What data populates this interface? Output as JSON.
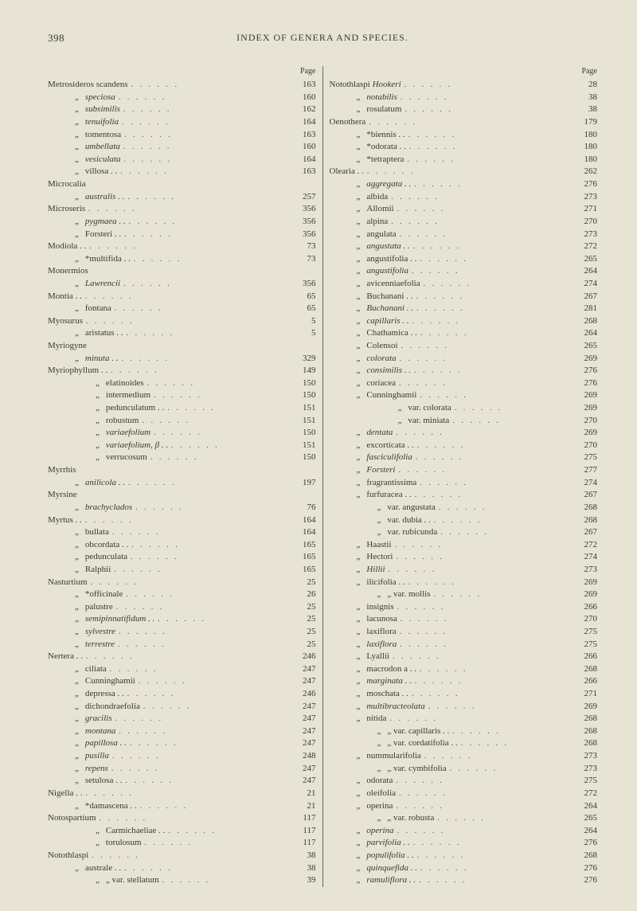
{
  "page_number": "398",
  "header_title": "INDEX OF GENERA AND SPECIES.",
  "page_label": "Page",
  "dots": ". .      . .      . .",
  "colors": {
    "background": "#e7e4d5",
    "text": "#3a3a32"
  },
  "left": [
    {
      "t": "Metrosideros scandens",
      "i": 0,
      "p": "163"
    },
    {
      "t": "speciosa",
      "i": 1,
      "d": 1,
      "it": 1,
      "p": "160"
    },
    {
      "t": "subsimilis",
      "i": 1,
      "d": 1,
      "it": 1,
      "p": "162"
    },
    {
      "t": "tenuifolia",
      "i": 1,
      "d": 1,
      "it": 1,
      "p": "164"
    },
    {
      "t": "tomentosa",
      "i": 1,
      "d": 1,
      "p": "163"
    },
    {
      "t": "umbellata",
      "i": 1,
      "d": 1,
      "it": 1,
      "p": "160"
    },
    {
      "t": "vesiculata",
      "i": 1,
      "d": 1,
      "it": 1,
      "p": "164"
    },
    {
      "t": "villosa . .",
      "i": 1,
      "d": 1,
      "p": "163"
    },
    {
      "t": "Microcalia",
      "i": 0,
      "p": ""
    },
    {
      "t": "australis . .",
      "i": 1,
      "d": 1,
      "it": 1,
      "p": "257"
    },
    {
      "t": "Microseris",
      "i": 0,
      "p": "356"
    },
    {
      "t": "pygmaea . .",
      "i": 1,
      "d": 1,
      "it": 1,
      "p": "356"
    },
    {
      "t": "Forsteri . .",
      "i": 1,
      "d": 1,
      "p": "356"
    },
    {
      "t": "Modiola . .",
      "i": 0,
      "p": "73"
    },
    {
      "t": "*multifida . .",
      "i": 1,
      "d": 1,
      "p": "73"
    },
    {
      "t": "Monermios",
      "i": 0,
      "p": ""
    },
    {
      "t": "Lawrencii",
      "i": 1,
      "d": 1,
      "it": 1,
      "p": "356"
    },
    {
      "t": "Montia . .",
      "i": 0,
      "p": "65"
    },
    {
      "t": "fontana",
      "i": 1,
      "d": 1,
      "p": "65"
    },
    {
      "t": "Myosurus",
      "i": 0,
      "p": "5"
    },
    {
      "t": "aristatus . .",
      "i": 1,
      "d": 1,
      "p": "5"
    },
    {
      "t": "Myriogyne",
      "i": 0,
      "p": ""
    },
    {
      "t": "minuta . .",
      "i": 1,
      "d": 1,
      "it": 1,
      "p": "329"
    },
    {
      "t": "Myriophyllum . .",
      "i": 0,
      "p": "149"
    },
    {
      "t": "elatinoides",
      "i": 2,
      "d": 1,
      "p": "150"
    },
    {
      "t": "intermedium",
      "i": 2,
      "d": 1,
      "p": "150"
    },
    {
      "t": "pedunculatum . .",
      "i": 2,
      "d": 1,
      "p": "151"
    },
    {
      "t": "robustum",
      "i": 2,
      "d": 1,
      "p": "151"
    },
    {
      "t": "variaefolium",
      "i": 2,
      "d": 1,
      "it": 1,
      "p": "150"
    },
    {
      "t": "variaefolium, β . .",
      "i": 2,
      "d": 1,
      "it": 1,
      "p": "151"
    },
    {
      "t": "verrucosum",
      "i": 2,
      "d": 1,
      "p": "150"
    },
    {
      "t": "Myrrhis",
      "i": 0,
      "p": ""
    },
    {
      "t": "anilicola  . .",
      "i": 1,
      "d": 1,
      "it": 1,
      "p": "197"
    },
    {
      "t": "Myrsine",
      "i": 0,
      "p": ""
    },
    {
      "t": "brachyclados",
      "i": 1,
      "d": 1,
      "it": 1,
      "p": "76"
    },
    {
      "t": "Myrtus . .",
      "i": 0,
      "p": "164"
    },
    {
      "t": "bullata",
      "i": 1,
      "d": 1,
      "p": "164"
    },
    {
      "t": "obcordata . .",
      "i": 1,
      "d": 1,
      "p": "165"
    },
    {
      "t": "pedunculata",
      "i": 1,
      "d": 1,
      "p": "165"
    },
    {
      "t": "Ralphii",
      "i": 1,
      "d": 1,
      "p": "165"
    },
    {
      "t": " ",
      "i": 0,
      "p": ""
    },
    {
      "t": "Nasturtium",
      "i": 0,
      "p": "25"
    },
    {
      "t": "*officinale",
      "i": 1,
      "d": 1,
      "p": "26"
    },
    {
      "t": "palustre",
      "i": 1,
      "d": 1,
      "p": "25"
    },
    {
      "t": "semipinnatifidum . .",
      "i": 1,
      "d": 1,
      "it": 1,
      "p": "25"
    },
    {
      "t": "sylvestre",
      "i": 1,
      "d": 1,
      "it": 1,
      "p": "25"
    },
    {
      "t": "terrestre",
      "i": 1,
      "d": 1,
      "it": 1,
      "p": "25"
    },
    {
      "t": "Nertera . .",
      "i": 0,
      "p": "246"
    },
    {
      "t": "ciliata",
      "i": 1,
      "d": 1,
      "p": "247"
    },
    {
      "t": "Cunninghamii",
      "i": 1,
      "d": 1,
      "p": "247"
    },
    {
      "t": "depressa . .",
      "i": 1,
      "d": 1,
      "p": "246"
    },
    {
      "t": "dichondraefolia",
      "i": 1,
      "d": 1,
      "p": "247"
    },
    {
      "t": "gracilis",
      "i": 1,
      "d": 1,
      "it": 1,
      "p": "247"
    },
    {
      "t": "montana",
      "i": 1,
      "d": 1,
      "it": 1,
      "p": "247"
    },
    {
      "t": "papillosa . .",
      "i": 1,
      "d": 1,
      "it": 1,
      "p": "247"
    },
    {
      "t": "pusilla",
      "i": 1,
      "d": 1,
      "it": 1,
      "p": "248"
    },
    {
      "t": "repens",
      "i": 1,
      "d": 1,
      "it": 1,
      "p": "247"
    },
    {
      "t": "setulosa  . .",
      "i": 1,
      "d": 1,
      "p": "247"
    },
    {
      "t": "Nigella . .",
      "i": 0,
      "p": "21"
    },
    {
      "t": "*damascena . .",
      "i": 1,
      "d": 1,
      "p": "21"
    },
    {
      "t": "Notospartium",
      "i": 0,
      "p": "117"
    },
    {
      "t": "Carmichaeliae . .",
      "i": 2,
      "d": 1,
      "p": "117"
    },
    {
      "t": "torulosum",
      "i": 2,
      "d": 1,
      "p": "117"
    },
    {
      "t": "Notothlaspi",
      "i": 0,
      "p": "38"
    },
    {
      "t": "australe . .",
      "i": 1,
      "d": 1,
      "p": "38"
    },
    {
      "t": "„    var. stellatum",
      "i": 2,
      "d": 1,
      "p": "39"
    }
  ],
  "right": [
    {
      "t": "Notothlaspi Hookeri",
      "i": 0,
      "it2": "Hookeri",
      "p": "28"
    },
    {
      "t": "notabilis",
      "i": 1,
      "d": 1,
      "it": 1,
      "p": "38"
    },
    {
      "t": "rosulatum",
      "i": 1,
      "d": 1,
      "p": "38"
    },
    {
      "t": " ",
      "i": 0,
      "p": ""
    },
    {
      "t": "Oenothera",
      "i": 0,
      "p": "179"
    },
    {
      "t": "*biennis . .",
      "i": 1,
      "d": 1,
      "p": "180"
    },
    {
      "t": "*odorata . .",
      "i": 1,
      "d": 1,
      "p": "180"
    },
    {
      "t": "*tetraptera",
      "i": 1,
      "d": 1,
      "p": "180"
    },
    {
      "t": "Olearia . .",
      "i": 0,
      "p": "262"
    },
    {
      "t": "aggregata . .",
      "i": 1,
      "d": 1,
      "it": 1,
      "p": "276"
    },
    {
      "t": "albida",
      "i": 1,
      "d": 1,
      "p": "273"
    },
    {
      "t": "Allomii",
      "i": 1,
      "d": 1,
      "p": "271"
    },
    {
      "t": "alpina",
      "i": 1,
      "d": 1,
      "p": "270"
    },
    {
      "t": "angulata",
      "i": 1,
      "d": 1,
      "p": "273"
    },
    {
      "t": "angustata . .",
      "i": 1,
      "d": 1,
      "it": 1,
      "p": "272"
    },
    {
      "t": "angustifolia . .",
      "i": 1,
      "d": 1,
      "p": "265"
    },
    {
      "t": "angustifolia",
      "i": 1,
      "d": 1,
      "it": 1,
      "p": "264"
    },
    {
      "t": "avicenniaefolia",
      "i": 1,
      "d": 1,
      "p": "274"
    },
    {
      "t": "Buchanani . .",
      "i": 1,
      "d": 1,
      "p": "267"
    },
    {
      "t": "Buchanani . .",
      "i": 1,
      "d": 1,
      "it": 1,
      "p": "281"
    },
    {
      "t": "capillaris . .",
      "i": 1,
      "d": 1,
      "it": 1,
      "p": "268"
    },
    {
      "t": "Chathamica . .",
      "i": 1,
      "d": 1,
      "p": "264"
    },
    {
      "t": "Colensoi",
      "i": 1,
      "d": 1,
      "p": "265"
    },
    {
      "t": "colorata",
      "i": 1,
      "d": 1,
      "it": 1,
      "p": "269"
    },
    {
      "t": "consimilis . .",
      "i": 1,
      "d": 1,
      "it": 1,
      "p": "276"
    },
    {
      "t": "coriacea",
      "i": 1,
      "d": 1,
      "p": "276"
    },
    {
      "t": "Cunninghamii",
      "i": 1,
      "d": 1,
      "p": "269"
    },
    {
      "t": "var. colorata",
      "i": 3,
      "d": 1,
      "p": "269"
    },
    {
      "t": "var. miniata",
      "i": 3,
      "d": 1,
      "p": "270"
    },
    {
      "t": "dentata",
      "i": 1,
      "d": 1,
      "it": 1,
      "p": "269"
    },
    {
      "t": "excorticata . .",
      "i": 1,
      "d": 1,
      "p": "270"
    },
    {
      "t": "fasciculifolia",
      "i": 1,
      "d": 1,
      "it": 1,
      "p": "275"
    },
    {
      "t": "Forsteri",
      "i": 1,
      "d": 1,
      "it": 1,
      "p": "277"
    },
    {
      "t": "fragrantissima",
      "i": 1,
      "d": 1,
      "p": "274"
    },
    {
      "t": "furfuracea . .",
      "i": 1,
      "d": 1,
      "p": "267"
    },
    {
      "t": "var. angustata",
      "i": 2,
      "d": 1,
      "p": "268"
    },
    {
      "t": "var. dubia . .",
      "i": 2,
      "d": 1,
      "p": "268"
    },
    {
      "t": "var. rubicunda",
      "i": 2,
      "d": 1,
      "p": "267"
    },
    {
      "t": "Haastii",
      "i": 1,
      "d": 1,
      "p": "272"
    },
    {
      "t": "Hectori",
      "i": 1,
      "d": 1,
      "p": "274"
    },
    {
      "t": "Hillii",
      "i": 1,
      "d": 1,
      "it": 1,
      "p": "273"
    },
    {
      "t": "ilicifolia . .",
      "i": 1,
      "d": 1,
      "p": "269"
    },
    {
      "t": "„    var. mollis",
      "i": 2,
      "d": 1,
      "p": "269"
    },
    {
      "t": "insignis",
      "i": 1,
      "d": 1,
      "p": "266"
    },
    {
      "t": "lacunosa",
      "i": 1,
      "d": 1,
      "p": "270"
    },
    {
      "t": "laxiflora",
      "i": 1,
      "d": 1,
      "p": "275"
    },
    {
      "t": "laxiflora",
      "i": 1,
      "d": 1,
      "it": 1,
      "p": "275"
    },
    {
      "t": "Lyallii",
      "i": 1,
      "d": 1,
      "p": "266"
    },
    {
      "t": "macrodon a . .",
      "i": 1,
      "d": 1,
      "p": "268"
    },
    {
      "t": "marginata . .",
      "i": 1,
      "d": 1,
      "it": 1,
      "p": "266"
    },
    {
      "t": "moschata . .",
      "i": 1,
      "d": 1,
      "p": "271"
    },
    {
      "t": "multibracteolata",
      "i": 1,
      "d": 1,
      "it": 1,
      "p": "269"
    },
    {
      "t": "nitida",
      "i": 1,
      "d": 1,
      "p": "268"
    },
    {
      "t": "„   var. capillaris  . .",
      "i": 2,
      "d": 1,
      "p": "268"
    },
    {
      "t": "„   var. cordatifolia . .",
      "i": 2,
      "d": 1,
      "p": "268"
    },
    {
      "t": "nummularifolia",
      "i": 1,
      "d": 1,
      "p": "273"
    },
    {
      "t": "„         var. cymbifolia",
      "i": 2,
      "d": 1,
      "p": "273"
    },
    {
      "t": "odorata",
      "i": 1,
      "d": 1,
      "p": "275"
    },
    {
      "t": "oleifolia",
      "i": 1,
      "d": 1,
      "p": "272"
    },
    {
      "t": "operina",
      "i": 1,
      "d": 1,
      "p": "264"
    },
    {
      "t": "„    var. robusta",
      "i": 2,
      "d": 1,
      "p": "265"
    },
    {
      "t": "operina",
      "i": 1,
      "d": 1,
      "it": 1,
      "p": "264"
    },
    {
      "t": "parvifolia . .",
      "i": 1,
      "d": 1,
      "it": 1,
      "p": "276"
    },
    {
      "t": "populifolia . .",
      "i": 1,
      "d": 1,
      "it": 1,
      "p": "268"
    },
    {
      "t": "quinquefida . .",
      "i": 1,
      "d": 1,
      "it": 1,
      "p": "276"
    },
    {
      "t": "ramuliflora . .",
      "i": 1,
      "d": 1,
      "it": 1,
      "p": "276"
    }
  ]
}
